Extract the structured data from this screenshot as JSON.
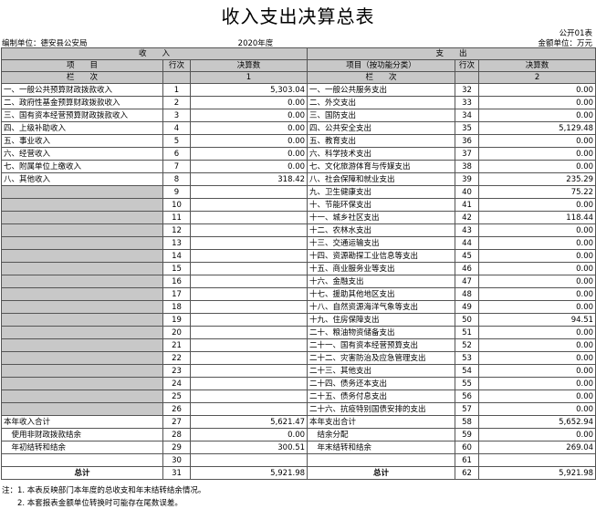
{
  "header": {
    "title": "收入支出决算总表",
    "form_no": "公开01表",
    "unit": "编制单位：德安县公安局",
    "year": "2020年度",
    "currency": "金额单位：万元"
  },
  "table": {
    "section_headers": [
      "收　　入",
      "支　　出"
    ],
    "column_headers": [
      "项　　目",
      "行次",
      "决算数",
      "项目（按功能分类）",
      "行次",
      "决算数"
    ],
    "index_row": [
      "栏　　次",
      null,
      "1",
      "栏　　次",
      null,
      "2"
    ],
    "rows": [
      [
        "一、一般公共预算财政拨款收入",
        "1",
        "5,303.04",
        "一、一般公共服务支出",
        "32",
        "0.00"
      ],
      [
        "二、政府性基金预算财政拨款收入",
        "2",
        "0.00",
        "二、外交支出",
        "33",
        "0.00"
      ],
      [
        "三、国有资本经营预算财政拨款收入",
        "3",
        "0.00",
        "三、国防支出",
        "34",
        "0.00"
      ],
      [
        "四、上级补助收入",
        "4",
        "0.00",
        "四、公共安全支出",
        "35",
        "5,129.48"
      ],
      [
        "五、事业收入",
        "5",
        "0.00",
        "五、教育支出",
        "36",
        "0.00"
      ],
      [
        "六、经营收入",
        "6",
        "0.00",
        "六、科学技术支出",
        "37",
        "0.00"
      ],
      [
        "七、附属单位上缴收入",
        "7",
        "0.00",
        "七、文化旅游体育与传媒支出",
        "38",
        "0.00"
      ],
      [
        "八、其他收入",
        "8",
        "318.42",
        "八、社会保障和就业支出",
        "39",
        "235.29"
      ],
      [
        null,
        "9",
        null,
        "九、卫生健康支出",
        "40",
        "75.22"
      ],
      [
        null,
        "10",
        null,
        "十、节能环保支出",
        "41",
        "0.00"
      ],
      [
        null,
        "11",
        null,
        "十一、城乡社区支出",
        "42",
        "118.44"
      ],
      [
        null,
        "12",
        null,
        "十二、农林水支出",
        "43",
        "0.00"
      ],
      [
        null,
        "13",
        null,
        "十三、交通运输支出",
        "44",
        "0.00"
      ],
      [
        null,
        "14",
        null,
        "十四、资源勘探工业信息等支出",
        "45",
        "0.00"
      ],
      [
        null,
        "15",
        null,
        "十五、商业服务业等支出",
        "46",
        "0.00"
      ],
      [
        null,
        "16",
        null,
        "十六、金融支出",
        "47",
        "0.00"
      ],
      [
        null,
        "17",
        null,
        "十七、援助其他地区支出",
        "48",
        "0.00"
      ],
      [
        null,
        "18",
        null,
        "十八、自然资源海洋气象等支出",
        "49",
        "0.00"
      ],
      [
        null,
        "19",
        null,
        "十九、住房保障支出",
        "50",
        "94.51"
      ],
      [
        null,
        "20",
        null,
        "二十、粮油物资储备支出",
        "51",
        "0.00"
      ],
      [
        null,
        "21",
        null,
        "二十一、国有资本经营预算支出",
        "52",
        "0.00"
      ],
      [
        null,
        "22",
        null,
        "二十二、灾害防治及应急管理支出",
        "53",
        "0.00"
      ],
      [
        null,
        "23",
        null,
        "二十三、其他支出",
        "54",
        "0.00"
      ],
      [
        null,
        "24",
        null,
        "二十四、债务还本支出",
        "55",
        "0.00"
      ],
      [
        null,
        "25",
        null,
        "二十五、债务付息支出",
        "56",
        "0.00"
      ],
      [
        null,
        "26",
        null,
        "二十六、抗疫特别国债安排的支出",
        "57",
        "0.00"
      ],
      [
        "本年收入合计",
        "27",
        "5,621.47",
        "本年支出合计",
        "58",
        "5,652.94"
      ],
      [
        "　使用非财政拨款结余",
        "28",
        "0.00",
        "　结余分配",
        "59",
        "0.00"
      ],
      [
        "　年初结转和结余",
        "29",
        "300.51",
        "　年末结转和结余",
        "60",
        "269.04"
      ],
      [
        null,
        "30",
        null,
        null,
        "61",
        null
      ],
      [
        "总计",
        "31",
        "5,921.98",
        "总计",
        "62",
        "5,921.98"
      ]
    ]
  },
  "notes": [
    "注：1. 本表反映部门本年度的总收支和年末结转结余情况。",
    "　　2. 本套报表金额单位转换时可能存在尾数误差。"
  ]
}
